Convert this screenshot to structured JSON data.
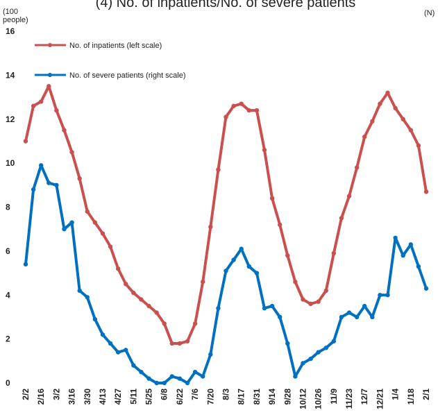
{
  "chart_data": {
    "type": "line",
    "title": "(4) No. of inpatients/No. of severe patients",
    "ylabel": "(100 people)",
    "y2label": "(N)",
    "categories": [
      "2/2",
      null,
      "2/16",
      null,
      "3/2",
      null,
      "3/16",
      null,
      "3/30",
      null,
      "4/13",
      null,
      "4/27",
      null,
      "5/11",
      null,
      "5/25",
      null,
      "6/8",
      null,
      "6/22",
      null,
      "7/6",
      null,
      "7/20",
      null,
      "8/3",
      null,
      "8/17",
      null,
      "8/31",
      null,
      "9/14",
      null,
      "9/28",
      null,
      "10/12",
      null,
      "10/26",
      null,
      "11/9",
      null,
      "11/23",
      null,
      "12/7",
      null,
      "12/21",
      null,
      "1/4",
      null,
      "1/18",
      null,
      "2/1"
    ],
    "series": [
      {
        "name": "No. of inpatients (left scale)",
        "color": "#c9504f",
        "values": [
          11.0,
          12.6,
          12.8,
          13.5,
          12.4,
          11.5,
          10.5,
          9.3,
          7.8,
          7.3,
          6.8,
          6.2,
          5.2,
          4.5,
          4.1,
          3.8,
          3.5,
          3.2,
          2.7,
          1.8,
          1.8,
          1.9,
          2.7,
          4.6,
          7.1,
          9.7,
          12.1,
          12.6,
          12.7,
          12.4,
          12.4,
          10.6,
          8.4,
          7.2,
          5.8,
          4.6,
          3.8,
          3.6,
          3.7,
          4.2,
          5.9,
          7.5,
          8.5,
          9.8,
          11.2,
          11.9,
          12.7,
          13.2,
          12.5,
          12.0,
          11.5,
          10.8,
          8.7
        ]
      },
      {
        "name": "No. of severe patients (right scale)",
        "color": "#0070c0",
        "axis": "y2",
        "values": [
          5.4,
          8.8,
          9.9,
          9.1,
          9.0,
          7.0,
          7.3,
          4.2,
          3.9,
          2.9,
          2.2,
          1.8,
          1.4,
          1.5,
          0.8,
          0.5,
          0.2,
          0.0,
          0.0,
          0.3,
          0.2,
          0.0,
          0.5,
          0.3,
          1.3,
          3.4,
          5.1,
          5.6,
          6.1,
          5.3,
          5.0,
          3.4,
          3.5,
          3.0,
          1.8,
          0.3,
          0.9,
          1.1,
          1.4,
          1.6,
          1.9,
          3.0,
          3.2,
          3.0,
          3.5,
          3.0,
          4.0,
          4.0,
          6.6,
          5.8,
          6.3,
          5.3,
          4.3
        ]
      }
    ],
    "ylim": [
      0,
      16
    ],
    "yticks": [
      0,
      2,
      4,
      6,
      8,
      10,
      12,
      14,
      16
    ],
    "y2lim": [
      0,
      16
    ],
    "grid": false,
    "legend": "upper left"
  }
}
